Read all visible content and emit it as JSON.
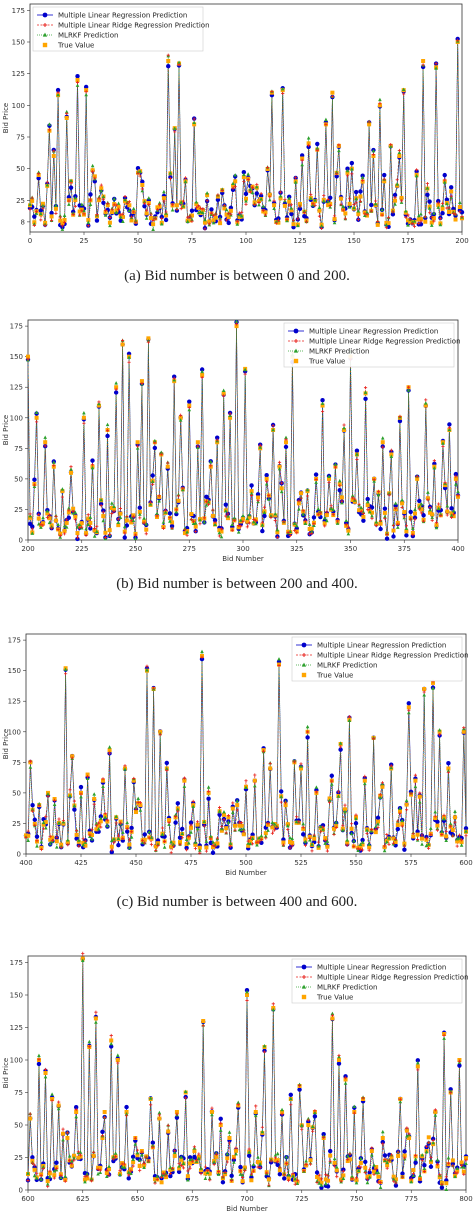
{
  "chart_data": [
    {
      "type": "line",
      "caption": "(a) Bid number is between 0 and 200.",
      "xlabel": "",
      "ylabel": "Bid Price",
      "xlim": [
        0,
        200
      ],
      "ylim": [
        0,
        175
      ],
      "xticks": [
        0,
        25,
        50,
        75,
        100,
        125,
        150,
        175,
        200
      ],
      "yticks": [
        8,
        25,
        50,
        75,
        100,
        125,
        150,
        175
      ],
      "legend_position": "top-left",
      "series": [
        {
          "name": "Multiple Linear Regression Prediction",
          "color": "#0000cc",
          "marker": "circle",
          "dash": "solid"
        },
        {
          "name": "Multiple Linear Ridge Regression Prediction",
          "color": "#e8211b",
          "marker": "plus",
          "dash": "dashed"
        },
        {
          "name": "MLRKF Prediction",
          "color": "#2ca02c",
          "marker": "triangle",
          "dash": "dotted"
        },
        {
          "name": "True Value",
          "color": "#ffa500",
          "marker": "square",
          "dash": "none"
        }
      ],
      "peaks": [
        [
          4,
          45
        ],
        [
          9,
          80
        ],
        [
          11,
          60
        ],
        [
          13,
          108
        ],
        [
          17,
          90
        ],
        [
          19,
          40
        ],
        [
          22,
          120
        ],
        [
          26,
          112
        ],
        [
          28,
          25
        ],
        [
          34,
          28
        ],
        [
          51,
          48
        ],
        [
          60,
          20
        ],
        [
          64,
          135
        ],
        [
          67,
          82
        ],
        [
          69,
          133
        ],
        [
          72,
          40
        ],
        [
          76,
          85
        ],
        [
          79,
          15
        ],
        [
          87,
          28
        ],
        [
          95,
          40
        ],
        [
          101,
          42
        ],
        [
          105,
          35
        ],
        [
          112,
          110
        ],
        [
          117,
          112
        ],
        [
          120,
          24
        ],
        [
          123,
          40
        ],
        [
          126,
          58
        ],
        [
          129,
          70
        ],
        [
          133,
          65
        ],
        [
          137,
          85
        ],
        [
          140,
          110
        ],
        [
          143,
          68
        ],
        [
          149,
          50
        ],
        [
          153,
          28
        ],
        [
          157,
          85
        ],
        [
          159,
          60
        ],
        [
          162,
          100
        ],
        [
          164,
          40
        ],
        [
          167,
          68
        ],
        [
          171,
          60
        ],
        [
          173,
          112
        ],
        [
          176,
          8
        ],
        [
          182,
          135
        ],
        [
          185,
          20
        ],
        [
          188,
          130
        ],
        [
          192,
          40
        ],
        [
          195,
          32
        ],
        [
          198,
          150
        ]
      ]
    },
    {
      "type": "line",
      "caption": "(b) Bid number is between 200 and 400.",
      "xlabel": "Bid Number",
      "ylabel": "Bid Price",
      "xlim": [
        200,
        400
      ],
      "ylim": [
        0,
        175
      ],
      "xticks": [
        200,
        225,
        250,
        275,
        300,
        325,
        350,
        375,
        400
      ],
      "yticks": [
        0,
        25,
        50,
        75,
        100,
        125,
        150,
        175
      ],
      "legend_position": "top-right",
      "series": [
        {
          "name": "Multiple Linear Regression Prediction",
          "color": "#0000cc",
          "marker": "circle",
          "dash": "solid"
        },
        {
          "name": "Multiple Linear Ridge Regression Prediction",
          "color": "#e8211b",
          "marker": "plus",
          "dash": "dashed"
        },
        {
          "name": "MLRKF Prediction",
          "color": "#2ca02c",
          "marker": "triangle",
          "dash": "dotted"
        },
        {
          "name": "True Value",
          "color": "#ffa500",
          "marker": "square",
          "dash": "none"
        }
      ],
      "peaks": [
        [
          200,
          150
        ],
        [
          204,
          100
        ],
        [
          208,
          80
        ],
        [
          212,
          60
        ],
        [
          216,
          40
        ],
        [
          220,
          55
        ],
        [
          226,
          100
        ],
        [
          230,
          60
        ],
        [
          233,
          110
        ],
        [
          237,
          90
        ],
        [
          241,
          125
        ],
        [
          244,
          160
        ],
        [
          247,
          150
        ],
        [
          251,
          80
        ],
        [
          253,
          130
        ],
        [
          256,
          165
        ],
        [
          259,
          80
        ],
        [
          262,
          70
        ],
        [
          265,
          60
        ],
        [
          268,
          130
        ],
        [
          271,
          100
        ],
        [
          275,
          110
        ],
        [
          279,
          80
        ],
        [
          281,
          135
        ],
        [
          285,
          60
        ],
        [
          288,
          80
        ],
        [
          291,
          120
        ],
        [
          294,
          100
        ],
        [
          297,
          175
        ],
        [
          301,
          140
        ],
        [
          304,
          40
        ],
        [
          308,
          75
        ],
        [
          311,
          50
        ],
        [
          314,
          90
        ],
        [
          317,
          60
        ],
        [
          320,
          80
        ],
        [
          323,
          150
        ],
        [
          326,
          30
        ],
        [
          330,
          40
        ],
        [
          334,
          50
        ],
        [
          337,
          110
        ],
        [
          340,
          50
        ],
        [
          343,
          60
        ],
        [
          347,
          90
        ],
        [
          350,
          150
        ],
        [
          353,
          70
        ],
        [
          357,
          120
        ],
        [
          361,
          50
        ],
        [
          365,
          80
        ],
        [
          369,
          70
        ],
        [
          373,
          100
        ],
        [
          377,
          125
        ],
        [
          381,
          50
        ],
        [
          385,
          110
        ],
        [
          389,
          60
        ],
        [
          393,
          80
        ],
        [
          396,
          90
        ],
        [
          399,
          50
        ]
      ]
    },
    {
      "type": "line",
      "caption": "(c) Bid number is between 400 and 600.",
      "xlabel": "Bid Number",
      "ylabel": "Bid Price",
      "xlim": [
        400,
        600
      ],
      "ylim": [
        0,
        175
      ],
      "xticks": [
        400,
        425,
        450,
        475,
        500,
        525,
        550,
        575,
        600
      ],
      "yticks": [
        0,
        25,
        50,
        75,
        100,
        125,
        150,
        175
      ],
      "legend_position": "top-right",
      "series": [
        {
          "name": "Multiple Linear Regression Prediction",
          "color": "#0000cc",
          "marker": "circle",
          "dash": "solid"
        },
        {
          "name": "Multiple Linear Ridge Regression Prediction",
          "color": "#e8211b",
          "marker": "plus",
          "dash": "dashed"
        },
        {
          "name": "MLRKF Prediction",
          "color": "#2ca02c",
          "marker": "triangle",
          "dash": "dotted"
        },
        {
          "name": "True Value",
          "color": "#ffa500",
          "marker": "square",
          "dash": "none"
        }
      ],
      "peaks": [
        [
          402,
          75
        ],
        [
          406,
          40
        ],
        [
          410,
          50
        ],
        [
          413,
          45
        ],
        [
          418,
          152
        ],
        [
          421,
          80
        ],
        [
          425,
          50
        ],
        [
          428,
          65
        ],
        [
          431,
          45
        ],
        [
          435,
          60
        ],
        [
          438,
          85
        ],
        [
          441,
          30
        ],
        [
          445,
          70
        ],
        [
          449,
          60
        ],
        [
          452,
          40
        ],
        [
          455,
          150
        ],
        [
          458,
          135
        ],
        [
          461,
          100
        ],
        [
          464,
          70
        ],
        [
          468,
          30
        ],
        [
          472,
          60
        ],
        [
          476,
          40
        ],
        [
          480,
          162
        ],
        [
          483,
          50
        ],
        [
          488,
          35
        ],
        [
          492,
          30
        ],
        [
          496,
          40
        ],
        [
          500,
          55
        ],
        [
          504,
          60
        ],
        [
          508,
          85
        ],
        [
          511,
          70
        ],
        [
          515,
          155
        ],
        [
          518,
          40
        ],
        [
          522,
          75
        ],
        [
          525,
          70
        ],
        [
          528,
          100
        ],
        [
          532,
          50
        ],
        [
          535,
          20
        ],
        [
          539,
          60
        ],
        [
          543,
          90
        ],
        [
          547,
          110
        ],
        [
          550,
          30
        ],
        [
          554,
          60
        ],
        [
          558,
          95
        ],
        [
          562,
          55
        ],
        [
          566,
          70
        ],
        [
          570,
          35
        ],
        [
          574,
          120
        ],
        [
          577,
          60
        ],
        [
          581,
          135
        ],
        [
          585,
          140
        ],
        [
          588,
          100
        ],
        [
          592,
          70
        ],
        [
          595,
          30
        ],
        [
          599,
          100
        ]
      ]
    },
    {
      "type": "line",
      "caption": "",
      "xlabel": "Bid Number",
      "ylabel": "Bid Price",
      "xlim": [
        600,
        800
      ],
      "ylim": [
        0,
        175
      ],
      "xticks": [
        600,
        625,
        650,
        675,
        700,
        725,
        750,
        775,
        800
      ],
      "yticks": [
        0,
        25,
        50,
        75,
        100,
        125,
        150,
        175
      ],
      "legend_position": "top-right",
      "series": [
        {
          "name": "Multiple Linear Regression Prediction",
          "color": "#0000cc",
          "marker": "circle",
          "dash": "solid"
        },
        {
          "name": "Multiple Linear Ridge Regression Prediction",
          "color": "#e8211b",
          "marker": "plus",
          "dash": "dashed"
        },
        {
          "name": "MLRKF Prediction",
          "color": "#2ca02c",
          "marker": "triangle",
          "dash": "dotted"
        },
        {
          "name": "True Value",
          "color": "#ffa500",
          "marker": "square",
          "dash": "none"
        }
      ],
      "peaks": [
        [
          601,
          55
        ],
        [
          605,
          100
        ],
        [
          608,
          90
        ],
        [
          611,
          70
        ],
        [
          614,
          65
        ],
        [
          618,
          40
        ],
        [
          622,
          60
        ],
        [
          625,
          178
        ],
        [
          628,
          110
        ],
        [
          631,
          132
        ],
        [
          635,
          60
        ],
        [
          638,
          115
        ],
        [
          641,
          100
        ],
        [
          645,
          60
        ],
        [
          649,
          40
        ],
        [
          652,
          30
        ],
        [
          656,
          70
        ],
        [
          660,
          55
        ],
        [
          664,
          45
        ],
        [
          668,
          60
        ],
        [
          672,
          75
        ],
        [
          676,
          30
        ],
        [
          680,
          130
        ],
        [
          684,
          60
        ],
        [
          688,
          50
        ],
        [
          692,
          40
        ],
        [
          696,
          65
        ],
        [
          700,
          150
        ],
        [
          704,
          60
        ],
        [
          708,
          110
        ],
        [
          712,
          140
        ],
        [
          716,
          60
        ],
        [
          720,
          70
        ],
        [
          724,
          80
        ],
        [
          728,
          50
        ],
        [
          731,
          60
        ],
        [
          735,
          40
        ],
        [
          739,
          132
        ],
        [
          742,
          100
        ],
        [
          745,
          85
        ],
        [
          749,
          60
        ],
        [
          753,
          70
        ],
        [
          757,
          30
        ],
        [
          762,
          40
        ],
        [
          766,
          25
        ],
        [
          770,
          70
        ],
        [
          774,
          40
        ],
        [
          778,
          95
        ],
        [
          782,
          30
        ],
        [
          786,
          60
        ],
        [
          790,
          120
        ],
        [
          793,
          75
        ],
        [
          797,
          100
        ]
      ]
    }
  ]
}
